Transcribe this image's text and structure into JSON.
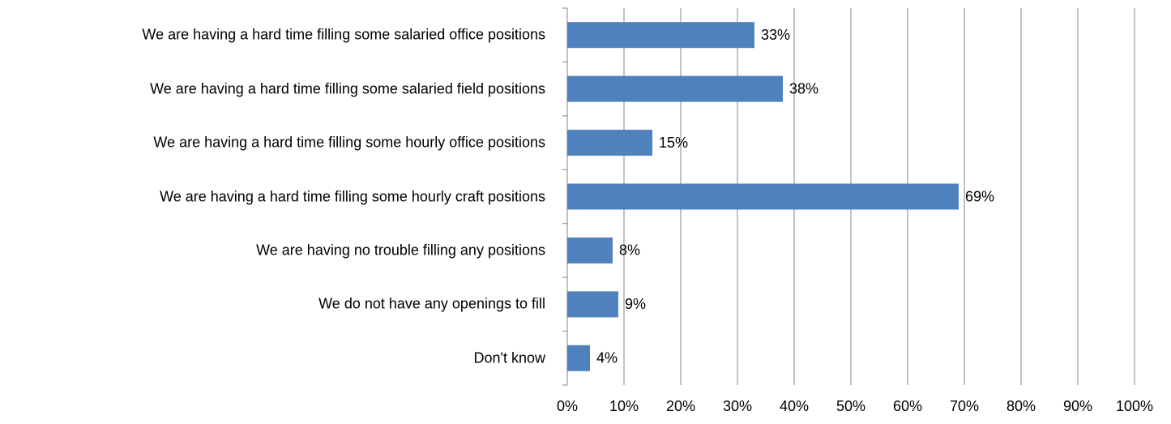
{
  "chart_data": {
    "type": "bar",
    "orientation": "horizontal",
    "categories": [
      "We are having a hard time filling some salaried office positions",
      "We are having a hard time filling some salaried field positions",
      "We are having a hard time filling some hourly office positions",
      "We are having a hard time filling some hourly craft positions",
      "We are having no trouble filling any positions",
      "We do not have any openings to fill",
      "Don't know"
    ],
    "values": [
      33,
      38,
      15,
      69,
      8,
      9,
      4
    ],
    "value_labels": [
      "33%",
      "38%",
      "15%",
      "69%",
      "8%",
      "9%",
      "4%"
    ],
    "color": "#4f81bd",
    "xlim": [
      0,
      100
    ],
    "xticks": [
      {
        "value": 0,
        "label": "0%"
      },
      {
        "value": 10,
        "label": "10%"
      },
      {
        "value": 20,
        "label": "20%"
      },
      {
        "value": 30,
        "label": "30%"
      },
      {
        "value": 40,
        "label": "40%"
      },
      {
        "value": 50,
        "label": "50%"
      },
      {
        "value": 60,
        "label": "60%"
      },
      {
        "value": 70,
        "label": "70%"
      },
      {
        "value": 80,
        "label": "80%"
      },
      {
        "value": 90,
        "label": "90%"
      },
      {
        "value": 100,
        "label": "100%"
      }
    ],
    "grid": true
  }
}
